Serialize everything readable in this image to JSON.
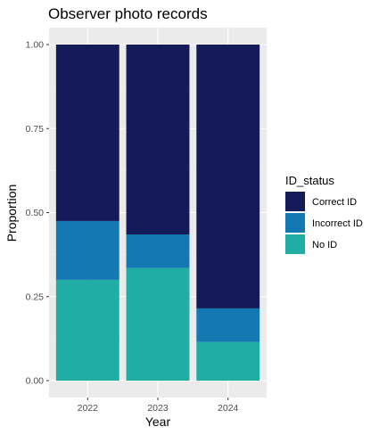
{
  "chart_data": {
    "type": "bar",
    "stacked": true,
    "title": "Observer photo records",
    "xlabel": "Year",
    "ylabel": "Proportion",
    "categories": [
      "2022",
      "2023",
      "2024"
    ],
    "ylim": [
      0,
      1
    ],
    "yticks": [
      "0.00",
      "0.25",
      "0.50",
      "0.75",
      "1.00"
    ],
    "legend_title": "ID_status",
    "legend_position": "right",
    "grid": true,
    "series": [
      {
        "name": "No ID",
        "color": "#20ADA4",
        "values": [
          0.3,
          0.335,
          0.115
        ]
      },
      {
        "name": "Incorrect ID",
        "color": "#1478B3",
        "values": [
          0.175,
          0.1,
          0.1
        ]
      },
      {
        "name": "Correct ID",
        "color": "#141B58",
        "values": [
          0.525,
          0.565,
          0.785
        ]
      }
    ],
    "legend_order": [
      "Correct ID",
      "Incorrect ID",
      "No ID"
    ]
  }
}
